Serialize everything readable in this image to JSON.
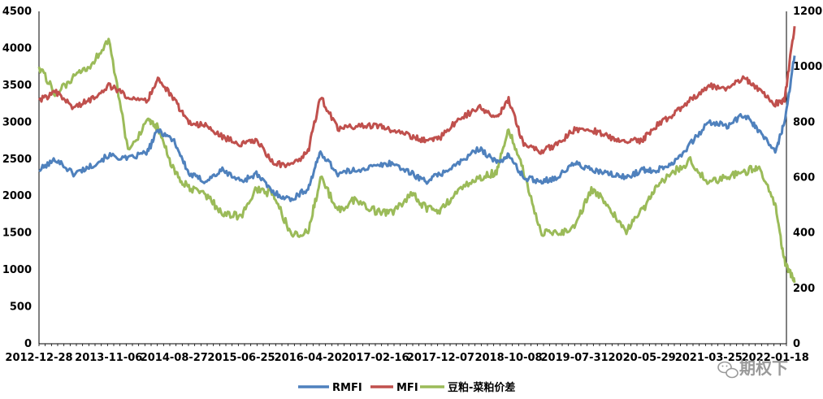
{
  "chart_data": {
    "type": "line",
    "title": "",
    "x_ticks": [
      "2012-12-28",
      "2013-11-06",
      "2014-08-27",
      "2015-06-25",
      "2016-04-20",
      "2017-02-16",
      "2017-12-07",
      "2018-10-08",
      "2019-07-31",
      "2020-05-29",
      "2021-03-25",
      "2022-01-18"
    ],
    "left_axis": {
      "ylim": [
        0,
        4500
      ],
      "ticks": [
        0,
        500,
        1000,
        1500,
        2000,
        2500,
        3000,
        3500,
        4000,
        4500
      ]
    },
    "right_axis": {
      "ylim": [
        0,
        1200
      ],
      "ticks": [
        0,
        200,
        400,
        600,
        800,
        1000,
        1200
      ]
    },
    "grid": false,
    "legend_position": "bottom",
    "series": [
      {
        "name": "RMFI",
        "axis": "left",
        "color": "#4f81bd",
        "x": [
          "2012-12-28",
          "2013-03-15",
          "2013-06-01",
          "2013-08-15",
          "2013-11-06",
          "2014-02-01",
          "2014-05-01",
          "2014-06-15",
          "2014-08-27",
          "2014-11-01",
          "2015-01-15",
          "2015-04-01",
          "2015-06-25",
          "2015-09-01",
          "2015-11-15",
          "2016-02-01",
          "2016-04-20",
          "2016-06-15",
          "2016-09-01",
          "2016-11-15",
          "2017-02-16",
          "2017-05-01",
          "2017-08-01",
          "2017-10-01",
          "2017-12-07",
          "2018-03-01",
          "2018-06-01",
          "2018-08-15",
          "2018-10-08",
          "2018-12-15",
          "2019-03-01",
          "2019-05-15",
          "2019-07-31",
          "2019-10-15",
          "2020-01-01",
          "2020-03-15",
          "2020-05-29",
          "2020-08-01",
          "2020-10-15",
          "2021-01-01",
          "2021-03-25",
          "2021-06-15",
          "2021-09-01",
          "2021-11-01",
          "2022-01-18",
          "2022-03-01",
          "2022-04-15"
        ],
        "y": [
          2350,
          2500,
          2300,
          2400,
          2550,
          2500,
          2600,
          2900,
          2750,
          2300,
          2200,
          2350,
          2200,
          2300,
          2050,
          1950,
          2100,
          2600,
          2300,
          2350,
          2400,
          2450,
          2300,
          2200,
          2300,
          2450,
          2650,
          2450,
          2550,
          2250,
          2200,
          2250,
          2450,
          2350,
          2300,
          2250,
          2350,
          2350,
          2450,
          2700,
          3000,
          2950,
          3100,
          2900,
          2600,
          3000,
          3900
        ]
      },
      {
        "name": "MFI",
        "axis": "left",
        "color": "#c0504d",
        "x": [
          "2012-12-28",
          "2013-03-15",
          "2013-06-01",
          "2013-08-15",
          "2013-11-06",
          "2014-02-01",
          "2014-05-01",
          "2014-06-15",
          "2014-08-27",
          "2014-11-01",
          "2015-01-15",
          "2015-04-01",
          "2015-06-25",
          "2015-09-01",
          "2015-11-15",
          "2016-02-01",
          "2016-04-20",
          "2016-06-15",
          "2016-09-01",
          "2016-11-15",
          "2017-02-16",
          "2017-05-01",
          "2017-08-01",
          "2017-10-01",
          "2017-12-07",
          "2018-03-01",
          "2018-06-01",
          "2018-08-15",
          "2018-10-08",
          "2018-12-15",
          "2019-03-01",
          "2019-05-15",
          "2019-07-31",
          "2019-10-15",
          "2020-01-01",
          "2020-03-15",
          "2020-05-29",
          "2020-08-01",
          "2020-10-15",
          "2021-01-01",
          "2021-03-25",
          "2021-06-15",
          "2021-09-01",
          "2021-11-01",
          "2022-01-18",
          "2022-03-01",
          "2022-04-15"
        ],
        "y": [
          3300,
          3400,
          3200,
          3300,
          3500,
          3350,
          3300,
          3600,
          3300,
          3000,
          2950,
          2800,
          2700,
          2750,
          2450,
          2400,
          2600,
          3350,
          2900,
          2950,
          2950,
          2900,
          2800,
          2750,
          2800,
          3050,
          3200,
          3050,
          3300,
          2700,
          2600,
          2700,
          2900,
          2900,
          2800,
          2750,
          2750,
          2950,
          3100,
          3300,
          3500,
          3450,
          3600,
          3450,
          3250,
          3300,
          4300
        ]
      },
      {
        "name": "豆粕-菜粕价差",
        "axis": "right",
        "color": "#9bbb59",
        "x": [
          "2012-12-28",
          "2013-03-15",
          "2013-06-01",
          "2013-08-15",
          "2013-11-06",
          "2014-02-01",
          "2014-05-01",
          "2014-06-15",
          "2014-08-27",
          "2014-11-01",
          "2015-01-15",
          "2015-04-01",
          "2015-06-25",
          "2015-09-01",
          "2015-11-15",
          "2016-02-01",
          "2016-04-20",
          "2016-06-15",
          "2016-09-01",
          "2016-11-15",
          "2017-02-16",
          "2017-05-01",
          "2017-08-01",
          "2017-10-01",
          "2017-12-07",
          "2018-03-01",
          "2018-06-01",
          "2018-08-15",
          "2018-10-08",
          "2018-12-15",
          "2019-03-01",
          "2019-05-15",
          "2019-07-31",
          "2019-10-15",
          "2020-01-01",
          "2020-03-15",
          "2020-05-29",
          "2020-08-01",
          "2020-10-15",
          "2021-01-01",
          "2021-03-25",
          "2021-06-15",
          "2021-09-01",
          "2021-11-01",
          "2022-01-18",
          "2022-03-01",
          "2022-04-15"
        ],
        "y": [
          1000,
          900,
          960,
          1000,
          1100,
          700,
          800,
          780,
          620,
          560,
          540,
          470,
          460,
          560,
          540,
          400,
          400,
          600,
          480,
          520,
          480,
          470,
          540,
          490,
          480,
          560,
          600,
          620,
          780,
          620,
          400,
          400,
          420,
          560,
          500,
          400,
          480,
          560,
          620,
          660,
          580,
          600,
          620,
          640,
          500,
          300,
          220
        ]
      }
    ]
  },
  "watermark": {
    "text": "期权下"
  }
}
